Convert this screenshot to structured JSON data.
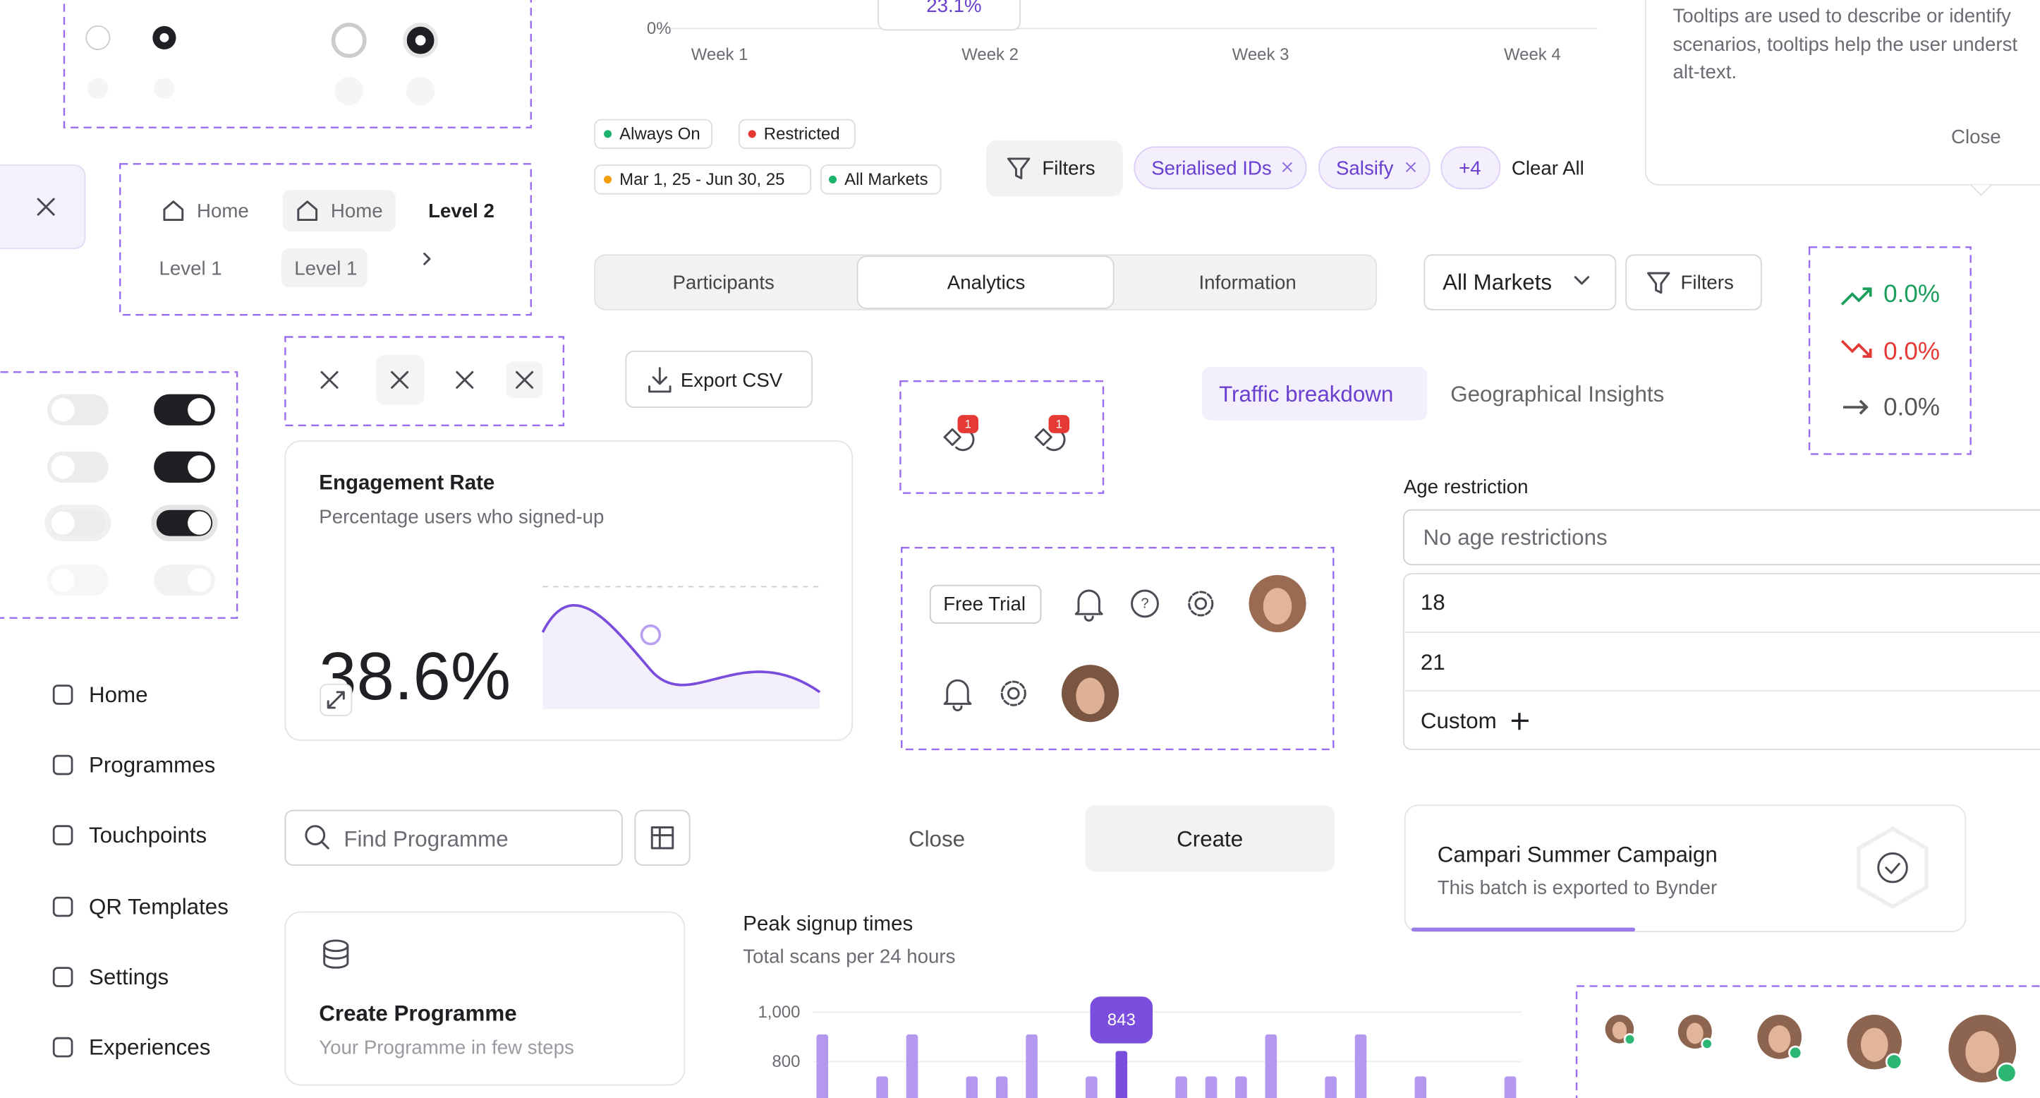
{
  "breadcrumbs": {
    "row1": [
      "Home",
      "Home",
      "Level 2"
    ],
    "row2": [
      "Level 1",
      "Level 1"
    ]
  },
  "export_button": "Export CSV",
  "engagement_card": {
    "title": "Engagement Rate",
    "subtitle": "Percentage users who signed-up",
    "value": "38.6%"
  },
  "sidebar": [
    "Home",
    "Programmes",
    "Touchpoints",
    "QR Templates",
    "Settings",
    "Experiences"
  ],
  "search": {
    "placeholder": "Find Programme"
  },
  "create_card": {
    "title": "Create Programme",
    "subtitle": "Your Programme in few steps"
  },
  "weekly_chart": {
    "y_label": "0%",
    "weeks": [
      "Week 1",
      "Week 2",
      "Week 3",
      "Week 4"
    ],
    "tooltip": "23.1%"
  },
  "status_tags": [
    "Always On",
    "Restricted",
    "Mar 1, 25 - Jun 30, 25",
    "All Markets"
  ],
  "filter_bar": {
    "button": "Filters",
    "chips": [
      "Serialised IDs",
      "Salsify",
      "+4"
    ],
    "clear": "Clear All"
  },
  "tabs": [
    "Participants",
    "Analytics",
    "Information"
  ],
  "market_select": "All Markets",
  "filters_button": "Filters",
  "tooltip": {
    "lines": [
      "Tooltips are used to describe or identify",
      "scenarios, tooltips help the user underst",
      "alt-text."
    ],
    "close": "Close"
  },
  "trends": [
    "0.0%",
    "0.0%",
    "0.0%"
  ],
  "insight_tabs": [
    "Traffic breakdown",
    "Geographical Insights"
  ],
  "notification_badges": [
    "1",
    "1"
  ],
  "header_bar": {
    "free_trial": "Free Trial"
  },
  "dialog_actions": {
    "close": "Close",
    "create": "Create"
  },
  "age_restriction": {
    "label": "Age restriction",
    "placeholder": "No age restrictions",
    "options": [
      "18",
      "21",
      "Custom"
    ]
  },
  "export_card": {
    "title": "Campari Summer Campaign",
    "subtitle": "This batch is exported to Bynder"
  },
  "peak_chart": {
    "type": "bar",
    "title": "Peak signup times",
    "subtitle": "Total scans per 24 hours",
    "ylim": [
      600,
      1100
    ],
    "yticks": [
      {
        "value": 1000,
        "label": "1,000"
      },
      800
    ],
    "values": [
      910,
      740,
      910,
      740,
      740,
      910,
      740,
      843,
      740,
      740,
      740,
      910,
      740,
      910,
      740,
      740
    ],
    "x_slots": [
      0,
      2,
      3,
      5,
      6,
      7,
      9,
      10,
      12,
      13,
      14,
      15,
      17,
      18,
      20,
      23
    ],
    "color": "#b497ef",
    "highlight": 7,
    "highlight_color": "#7a4ddd",
    "grid": true
  }
}
